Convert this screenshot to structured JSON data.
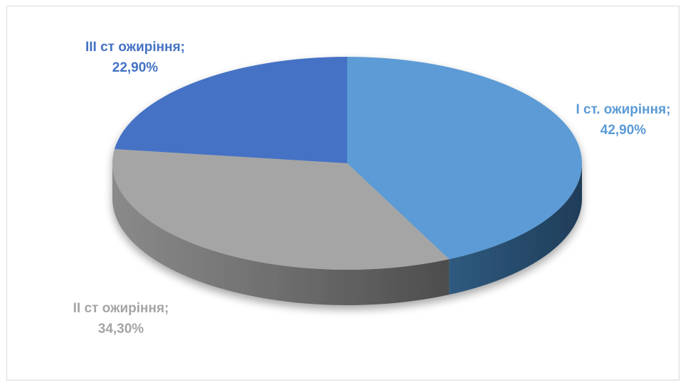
{
  "chart_data": {
    "type": "pie",
    "title": "",
    "labels": [
      "I ст. ожиріння",
      "II ст ожиріння",
      "III ст ожиріння"
    ],
    "values": [
      42.9,
      34.3,
      22.9
    ],
    "unit": "%",
    "data_labels": [
      {
        "name": "I ст. ожиріння;",
        "value": "42,90%"
      },
      {
        "name": "II ст ожиріння;",
        "value": "34,30%"
      },
      {
        "name": "III ст ожиріння;",
        "value": "22,90%"
      }
    ],
    "colors": [
      "#5b9bd5",
      "#a5a5a5",
      "#4472c4"
    ],
    "legend": "none",
    "style": "3d-pie"
  }
}
